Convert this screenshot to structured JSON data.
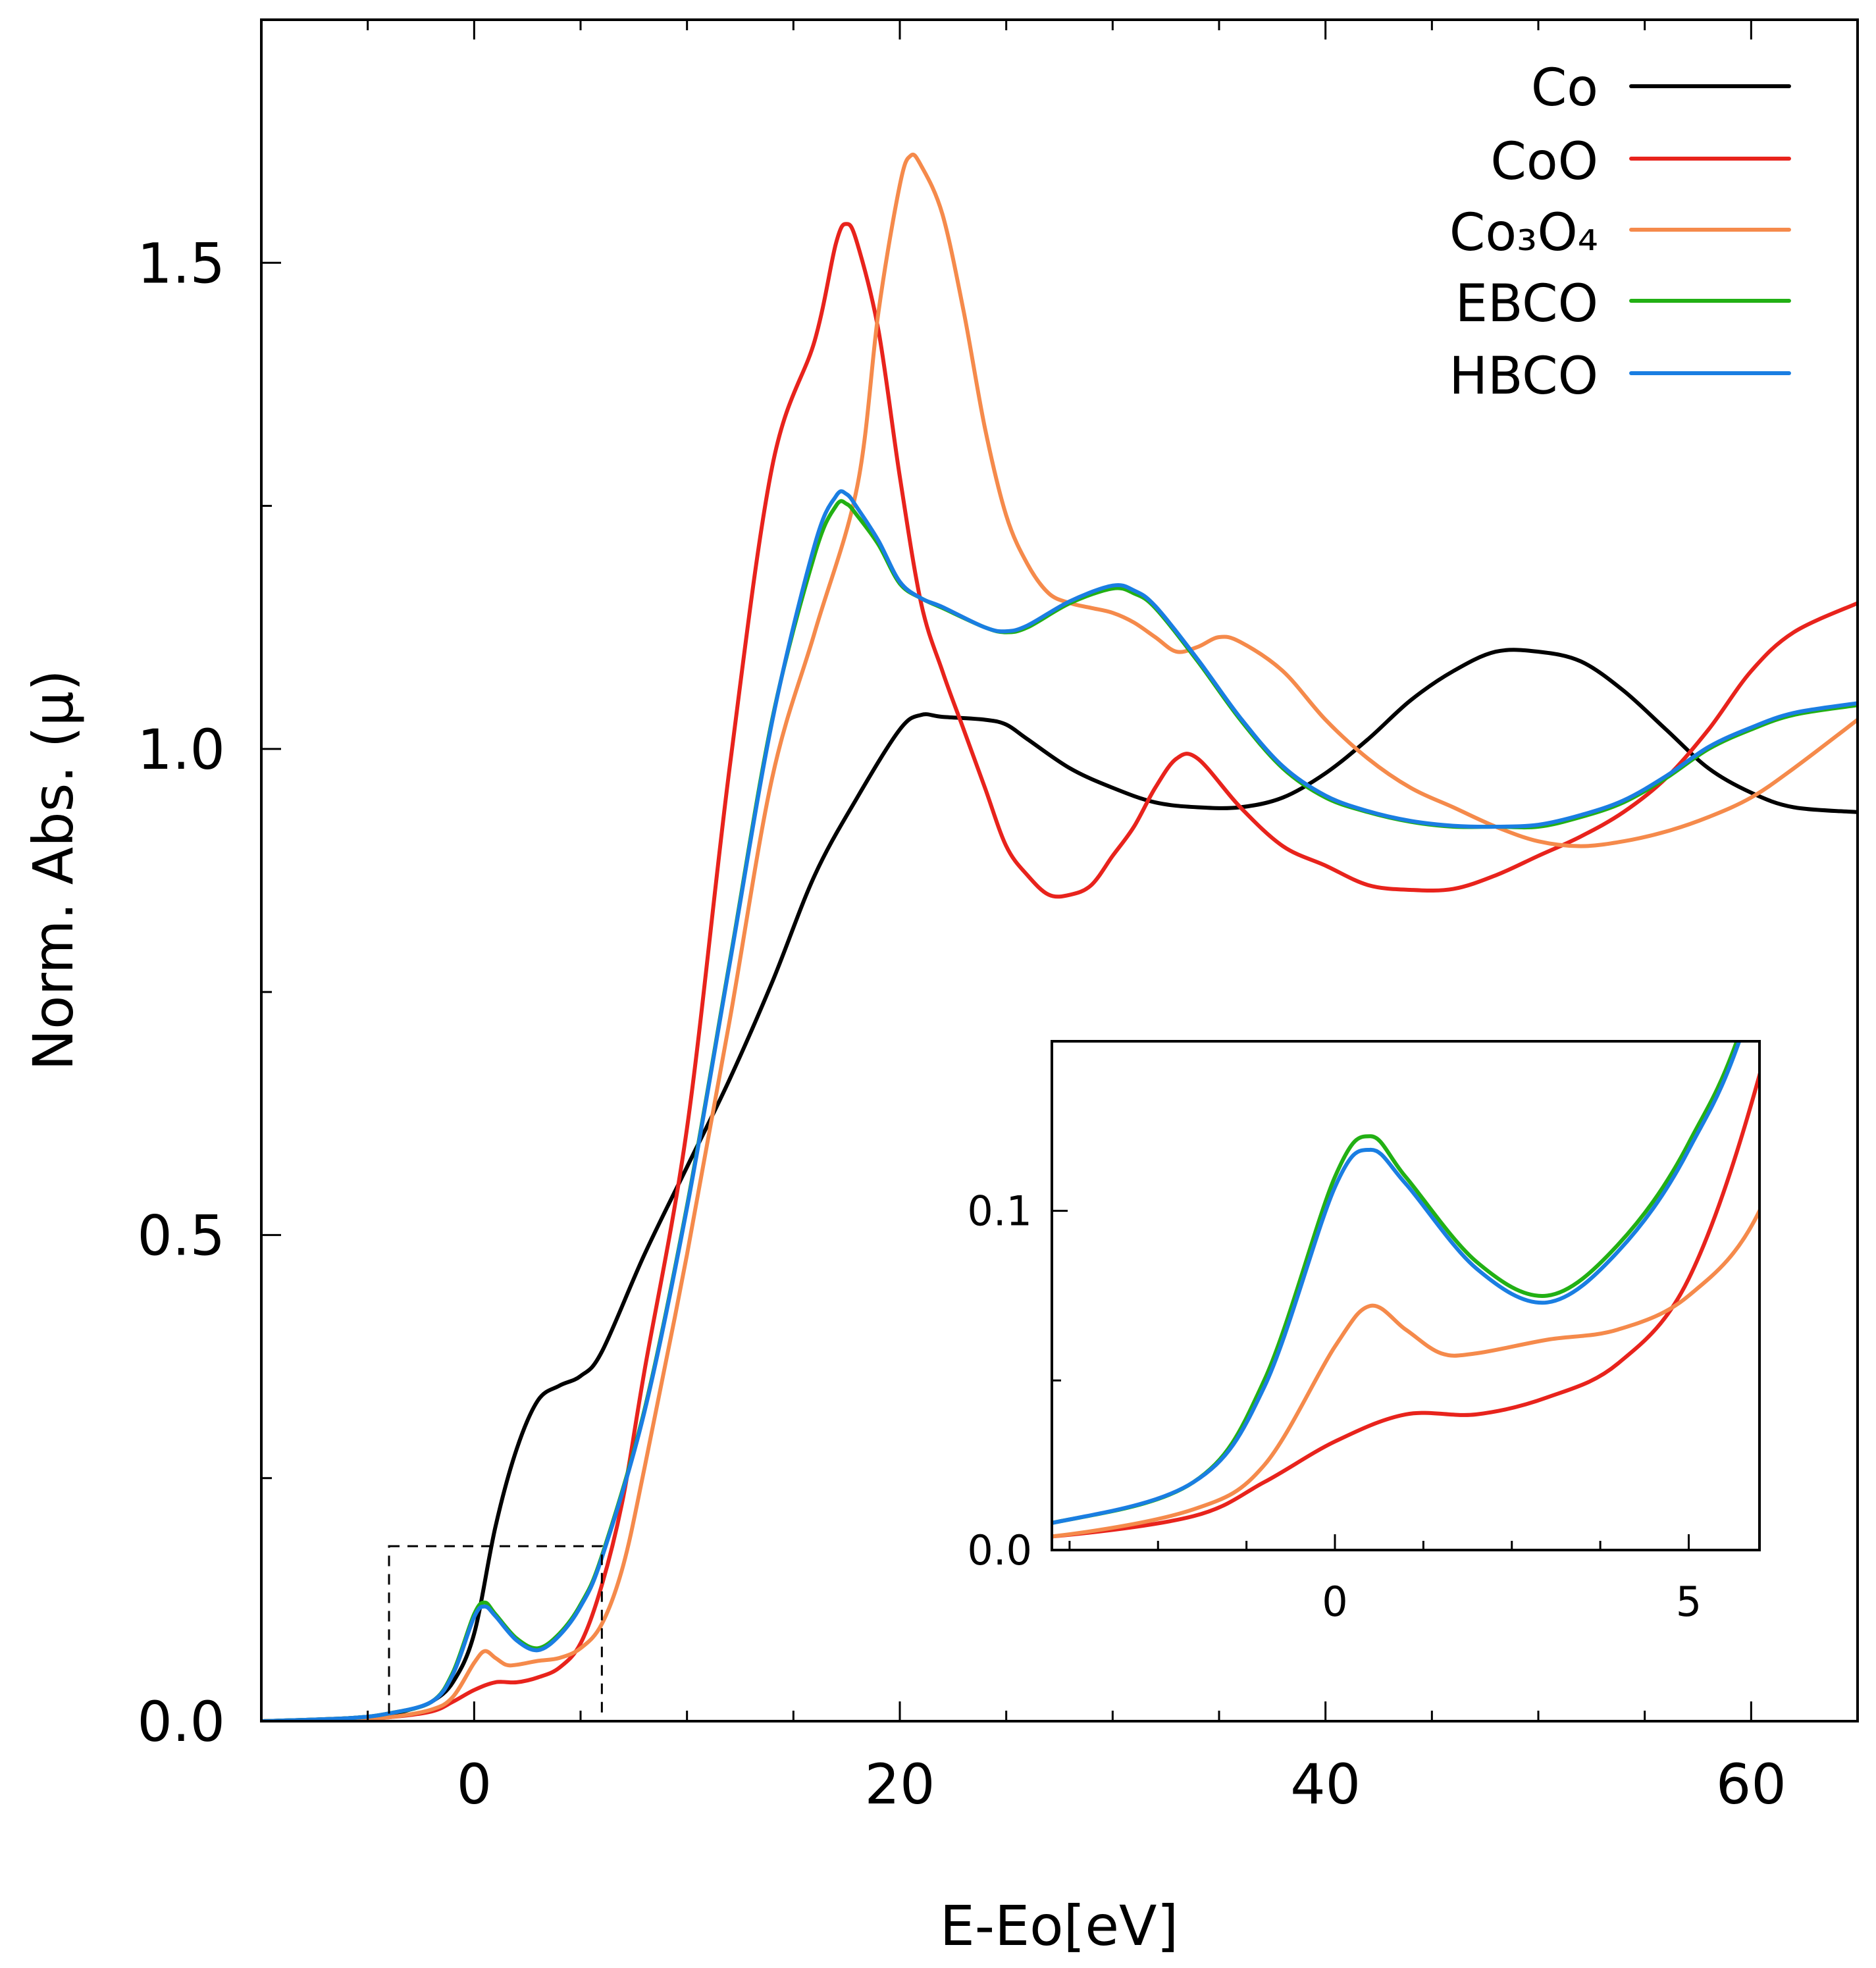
{
  "chart_data": {
    "type": "line",
    "xlabel": "E-Eo[eV]",
    "ylabel": "Norm. Abs. (μ)",
    "xlim": [
      -10,
      65
    ],
    "ylim": [
      0,
      1.75
    ],
    "xticks": [
      0,
      20,
      40,
      60
    ],
    "xtick_labels": [
      "0",
      "20",
      "40",
      "60"
    ],
    "xminor_step": 5,
    "yticks": [
      0.0,
      0.5,
      1.0,
      1.5
    ],
    "ytick_labels": [
      "0.0",
      "0.5",
      "1.0",
      "1.5"
    ],
    "yminor_step": 0.25,
    "grid": false,
    "legend_position": "top-right",
    "zoom_region": {
      "x": [
        -4,
        6
      ],
      "y": [
        0,
        0.18
      ]
    },
    "series": [
      {
        "name": "Co",
        "color": "#000000",
        "x": [
          -10,
          -6,
          -4,
          -3,
          -2,
          -1,
          0,
          1,
          2,
          3,
          4,
          5,
          6,
          8,
          10,
          12,
          14,
          16,
          18,
          20,
          21,
          22,
          24,
          25,
          26,
          28,
          30,
          32,
          34,
          36,
          38,
          40,
          42,
          44,
          46,
          48,
          50,
          52,
          54,
          56,
          58,
          60,
          62,
          65
        ],
        "y": [
          0.0,
          0.003,
          0.007,
          0.012,
          0.02,
          0.04,
          0.09,
          0.2,
          0.28,
          0.33,
          0.345,
          0.355,
          0.38,
          0.48,
          0.57,
          0.66,
          0.76,
          0.87,
          0.95,
          1.02,
          1.035,
          1.033,
          1.03,
          1.025,
          1.01,
          0.98,
          0.96,
          0.945,
          0.94,
          0.94,
          0.95,
          0.975,
          1.01,
          1.05,
          1.08,
          1.1,
          1.1,
          1.09,
          1.06,
          1.02,
          0.98,
          0.955,
          0.94,
          0.935
        ]
      },
      {
        "name": "CoO",
        "color": "#e8231c",
        "x": [
          -10,
          -6,
          -4,
          -2,
          -1,
          0,
          1,
          2,
          3,
          4,
          5,
          6,
          7,
          8,
          10,
          12,
          14,
          16,
          17,
          17.5,
          18,
          19,
          20,
          21,
          22,
          23,
          24,
          25,
          26,
          27,
          28,
          29,
          30,
          31,
          32,
          33,
          34,
          36,
          38,
          40,
          42,
          44,
          46,
          48,
          50,
          52,
          54,
          56,
          58,
          60,
          62,
          65
        ],
        "y": [
          0.0,
          0.002,
          0.004,
          0.01,
          0.02,
          0.032,
          0.04,
          0.04,
          0.045,
          0.055,
          0.08,
          0.14,
          0.23,
          0.36,
          0.61,
          0.98,
          1.29,
          1.42,
          1.52,
          1.54,
          1.52,
          1.43,
          1.28,
          1.15,
          1.08,
          1.02,
          0.96,
          0.9,
          0.87,
          0.85,
          0.85,
          0.86,
          0.89,
          0.92,
          0.96,
          0.99,
          0.99,
          0.94,
          0.9,
          0.88,
          0.86,
          0.855,
          0.856,
          0.87,
          0.89,
          0.91,
          0.935,
          0.97,
          1.02,
          1.08,
          1.12,
          1.15
        ]
      },
      {
        "name": "Co₃O₄",
        "color": "#f58a4b",
        "x": [
          -10,
          -6,
          -4,
          -2,
          -1,
          0,
          0.5,
          1,
          1.5,
          2,
          3,
          4,
          5,
          6,
          7,
          8,
          10,
          12,
          14,
          16,
          18,
          19,
          20,
          20.5,
          21,
          22,
          23,
          24,
          25,
          26,
          27,
          28,
          29,
          30,
          31,
          32,
          33,
          34,
          35,
          36,
          38,
          40,
          42,
          44,
          46,
          48,
          50,
          52,
          54,
          56,
          58,
          60,
          62,
          65
        ],
        "y": [
          0.0,
          0.002,
          0.004,
          0.012,
          0.025,
          0.06,
          0.072,
          0.065,
          0.058,
          0.058,
          0.062,
          0.065,
          0.075,
          0.1,
          0.16,
          0.26,
          0.48,
          0.72,
          0.97,
          1.12,
          1.27,
          1.45,
          1.58,
          1.61,
          1.6,
          1.55,
          1.45,
          1.33,
          1.24,
          1.19,
          1.16,
          1.15,
          1.145,
          1.14,
          1.13,
          1.115,
          1.1,
          1.105,
          1.115,
          1.11,
          1.08,
          1.03,
          0.99,
          0.96,
          0.94,
          0.92,
          0.905,
          0.9,
          0.905,
          0.915,
          0.93,
          0.95,
          0.98,
          1.03
        ]
      },
      {
        "name": "EBCO",
        "color": "#22b014",
        "x": [
          -10,
          -6,
          -4,
          -2,
          -1,
          0,
          0.5,
          1,
          2,
          3,
          4,
          5,
          6,
          8,
          10,
          12,
          14,
          16,
          17,
          17.5,
          18,
          19,
          20,
          21,
          22,
          24,
          25,
          26,
          28,
          30,
          31,
          32,
          34,
          36,
          38,
          40,
          42,
          44,
          46,
          48,
          50,
          52,
          54,
          56,
          58,
          60,
          62,
          65
        ],
        "y": [
          0.0,
          0.003,
          0.008,
          0.02,
          0.05,
          0.11,
          0.122,
          0.11,
          0.085,
          0.075,
          0.09,
          0.12,
          0.17,
          0.32,
          0.53,
          0.78,
          1.03,
          1.2,
          1.25,
          1.252,
          1.24,
          1.21,
          1.17,
          1.155,
          1.145,
          1.125,
          1.12,
          1.125,
          1.15,
          1.165,
          1.16,
          1.145,
          1.09,
          1.03,
          0.98,
          0.95,
          0.935,
          0.925,
          0.92,
          0.92,
          0.92,
          0.93,
          0.945,
          0.97,
          1.0,
          1.02,
          1.035,
          1.045
        ]
      },
      {
        "name": "HBCO",
        "color": "#1a7ee2",
        "x": [
          -10,
          -6,
          -4,
          -2,
          -1,
          0,
          0.5,
          1,
          2,
          3,
          4,
          5,
          6,
          8,
          10,
          12,
          14,
          16,
          17,
          17.5,
          18,
          19,
          20,
          21,
          22,
          24,
          25,
          26,
          28,
          30,
          31,
          32,
          34,
          36,
          38,
          40,
          42,
          44,
          46,
          48,
          50,
          52,
          54,
          56,
          58,
          60,
          62,
          65
        ],
        "y": [
          0.0,
          0.003,
          0.008,
          0.02,
          0.048,
          0.107,
          0.118,
          0.108,
          0.083,
          0.073,
          0.088,
          0.118,
          0.168,
          0.318,
          0.528,
          0.778,
          1.028,
          1.21,
          1.26,
          1.262,
          1.248,
          1.214,
          1.172,
          1.155,
          1.146,
          1.125,
          1.121,
          1.127,
          1.152,
          1.168,
          1.163,
          1.147,
          1.092,
          1.032,
          0.982,
          0.952,
          0.936,
          0.926,
          0.921,
          0.92,
          0.922,
          0.932,
          0.947,
          0.972,
          1.002,
          1.022,
          1.037,
          1.047
        ]
      }
    ],
    "inset": {
      "xlim": [
        -4,
        6
      ],
      "ylim": [
        0,
        0.15
      ],
      "xticks": [
        0,
        5
      ],
      "xtick_labels": [
        "0",
        "5"
      ],
      "xminor_step": 1.25,
      "yticks": [
        0.0,
        0.1
      ],
      "ytick_labels": [
        "0.0",
        "0.1"
      ],
      "yminor_step": 0.05,
      "series": [
        "CoO",
        "Co₃O₄",
        "EBCO",
        "HBCO"
      ]
    }
  }
}
